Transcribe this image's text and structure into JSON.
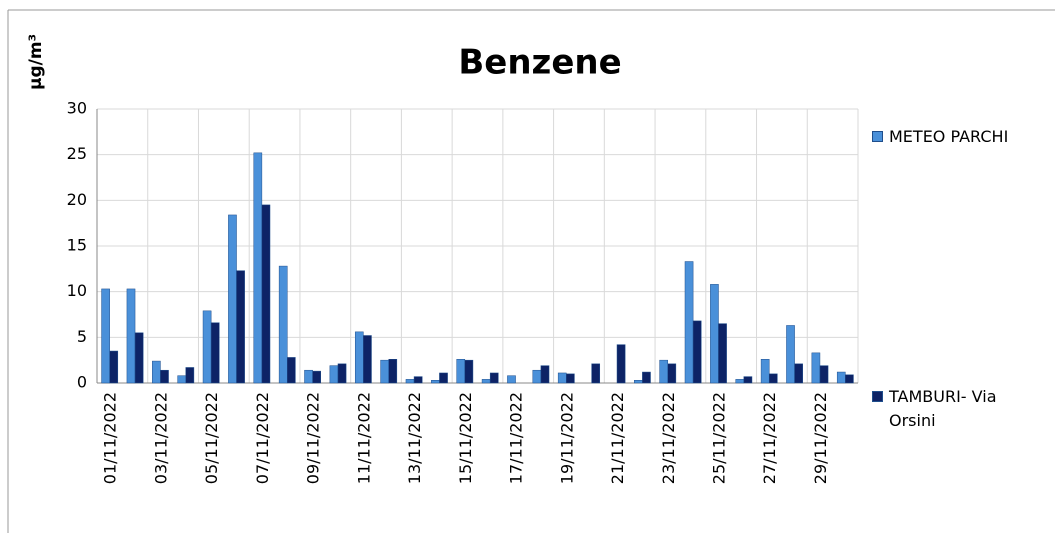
{
  "chart_data": {
    "type": "bar",
    "title": "Benzene",
    "y_label": "µg/m³",
    "categories": [
      "01/11/2022",
      null,
      "03/11/2022",
      null,
      "05/11/2022",
      null,
      "07/11/2022",
      null,
      "09/11/2022",
      null,
      "11/11/2022",
      null,
      "13/11/2022",
      null,
      "15/11/2022",
      null,
      "17/11/2022",
      null,
      "19/11/2022",
      null,
      "21/11/2022",
      null,
      "23/11/2022",
      null,
      "25/11/2022",
      null,
      "27/11/2022",
      null,
      "29/11/2022",
      null
    ],
    "series": [
      {
        "name": "METEO PARCHI",
        "color": "#4a90d9",
        "values": [
          10.3,
          10.3,
          2.4,
          0.8,
          7.9,
          18.4,
          25.2,
          12.8,
          1.4,
          1.9,
          5.6,
          2.5,
          0.4,
          0.3,
          2.6,
          0.4,
          0.8,
          1.4,
          1.1,
          null,
          null,
          0.3,
          2.5,
          13.3,
          10.8,
          0.4,
          2.6,
          6.3,
          3.3,
          1.2
        ]
      },
      {
        "name": "TAMBURI- Via Orsini",
        "color": "#0d2366",
        "values": [
          3.5,
          5.5,
          1.4,
          1.7,
          6.6,
          12.3,
          19.5,
          2.8,
          1.3,
          2.1,
          5.2,
          2.6,
          0.7,
          1.1,
          2.5,
          1.1,
          null,
          1.9,
          1.0,
          2.1,
          4.2,
          1.2,
          2.1,
          6.8,
          6.5,
          0.7,
          1.0,
          2.1,
          1.9,
          0.9
        ]
      }
    ],
    "ylim": [
      0,
      30
    ],
    "yticks": [
      0,
      5,
      10,
      15,
      20,
      25,
      30
    ],
    "grid": true,
    "legend": "right"
  }
}
